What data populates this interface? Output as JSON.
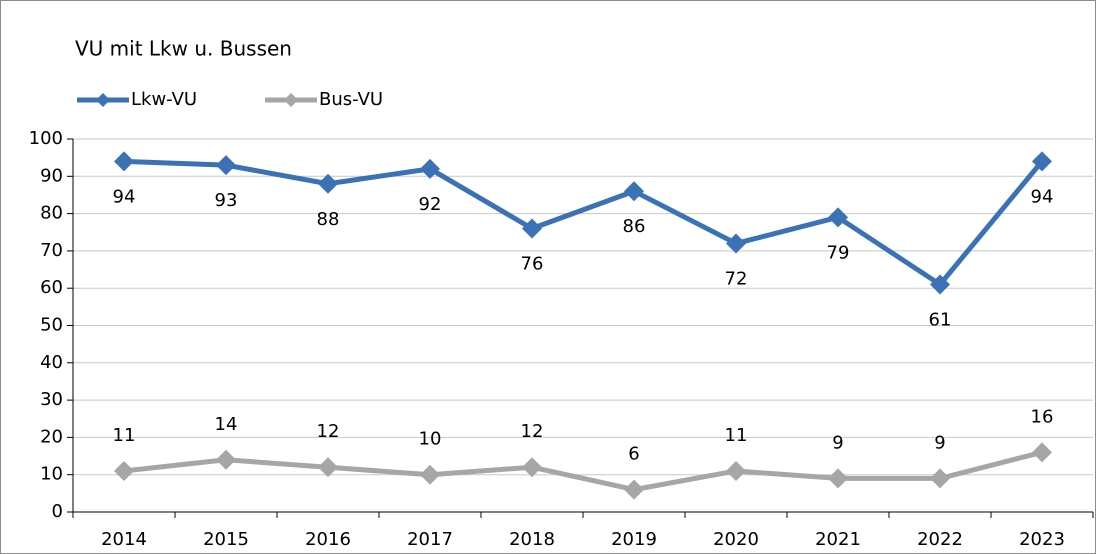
{
  "chart_data": {
    "type": "line",
    "title": "VU mit Lkw u. Bussen",
    "categories": [
      "2014",
      "2015",
      "2016",
      "2017",
      "2018",
      "2019",
      "2020",
      "2021",
      "2022",
      "2023"
    ],
    "series": [
      {
        "name": "Lkw-VU",
        "color": "#3a72b5",
        "values": [
          94,
          93,
          88,
          92,
          76,
          86,
          72,
          79,
          61,
          94
        ]
      },
      {
        "name": "Bus-VU",
        "color": "#a6a6a6",
        "values": [
          11,
          14,
          12,
          10,
          12,
          6,
          11,
          9,
          9,
          16
        ]
      }
    ],
    "ylim": [
      0,
      100
    ],
    "yticks": [
      0,
      10,
      20,
      30,
      40,
      50,
      60,
      70,
      80,
      90,
      100
    ],
    "grid": true
  }
}
